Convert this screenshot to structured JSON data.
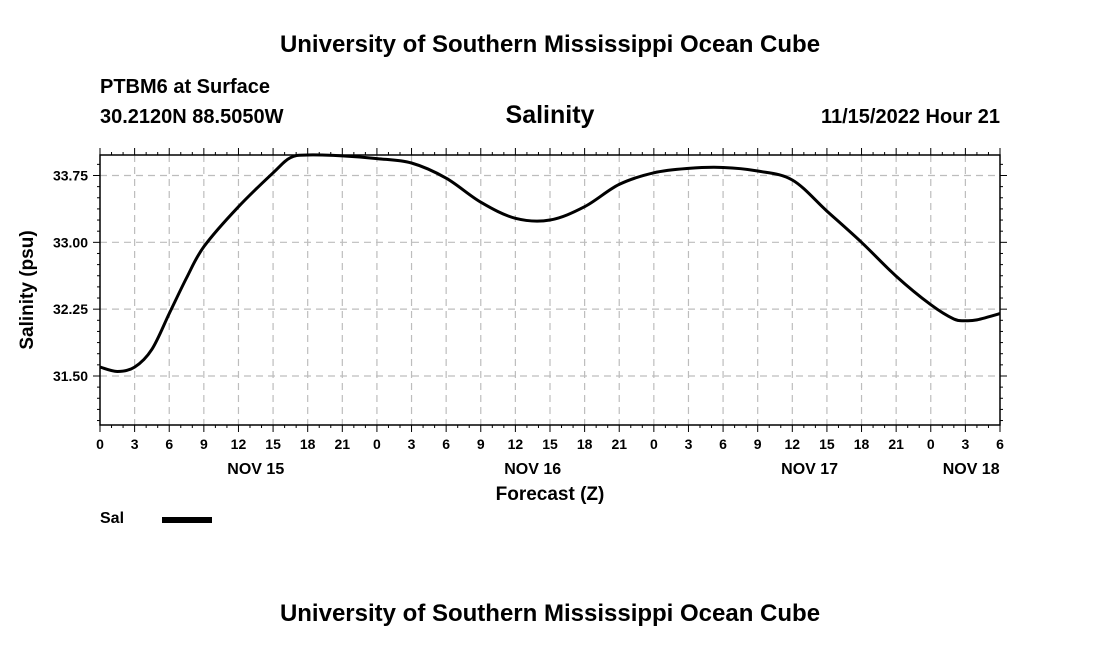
{
  "header": {
    "banner_top": "University of Southern Mississippi Ocean Cube",
    "station": "PTBM6 at Surface",
    "coords": "30.2120N  88.5050W",
    "title": "Salinity",
    "issue_time": "11/15/2022 Hour 21"
  },
  "footer": {
    "banner_bottom": "University of Southern Mississippi Ocean Cube"
  },
  "legend": {
    "label": "Sal"
  },
  "chart_data": {
    "type": "line",
    "title": "Salinity",
    "xlabel": "Forecast (Z)",
    "ylabel": "Salinity (psu)",
    "xlim": [
      0,
      78
    ],
    "ylim": [
      30.95,
      33.98
    ],
    "grid": true,
    "x_ticks": [
      0,
      3,
      6,
      9,
      12,
      15,
      18,
      21,
      24,
      27,
      30,
      33,
      36,
      39,
      42,
      45,
      48,
      51,
      54,
      57,
      60,
      63,
      66,
      69,
      72,
      75,
      78
    ],
    "x_tick_labels": [
      "0",
      "3",
      "6",
      "9",
      "12",
      "15",
      "18",
      "21",
      "0",
      "3",
      "6",
      "9",
      "12",
      "15",
      "18",
      "21",
      "0",
      "3",
      "6",
      "9",
      "12",
      "15",
      "18",
      "21",
      "0",
      "3",
      "6"
    ],
    "date_labels": [
      {
        "x": 13.5,
        "label": "NOV 15"
      },
      {
        "x": 37.5,
        "label": "NOV 16"
      },
      {
        "x": 61.5,
        "label": "NOV 17"
      },
      {
        "x": 75.5,
        "label": "NOV 18"
      }
    ],
    "y_ticks": [
      31.5,
      32.25,
      33.0,
      33.75
    ],
    "y_tick_labels": [
      "31.50",
      "32.25",
      "33.00",
      "33.75"
    ],
    "series": [
      {
        "name": "Sal",
        "x": [
          0,
          1.5,
          3,
          4.5,
          6,
          7.5,
          9,
          12,
          15,
          16.5,
          18,
          21,
          24,
          27,
          30,
          33,
          36,
          39,
          42,
          45,
          48,
          51,
          54,
          57,
          60,
          63,
          66,
          69,
          72,
          74,
          75,
          76,
          78
        ],
        "values": [
          31.6,
          31.55,
          31.6,
          31.8,
          32.2,
          32.6,
          32.95,
          33.4,
          33.78,
          33.95,
          33.98,
          33.97,
          33.94,
          33.89,
          33.72,
          33.45,
          33.27,
          33.25,
          33.4,
          33.65,
          33.78,
          33.83,
          33.84,
          33.8,
          33.7,
          33.35,
          33.0,
          32.62,
          32.3,
          32.14,
          32.12,
          32.13,
          32.2
        ]
      }
    ]
  }
}
